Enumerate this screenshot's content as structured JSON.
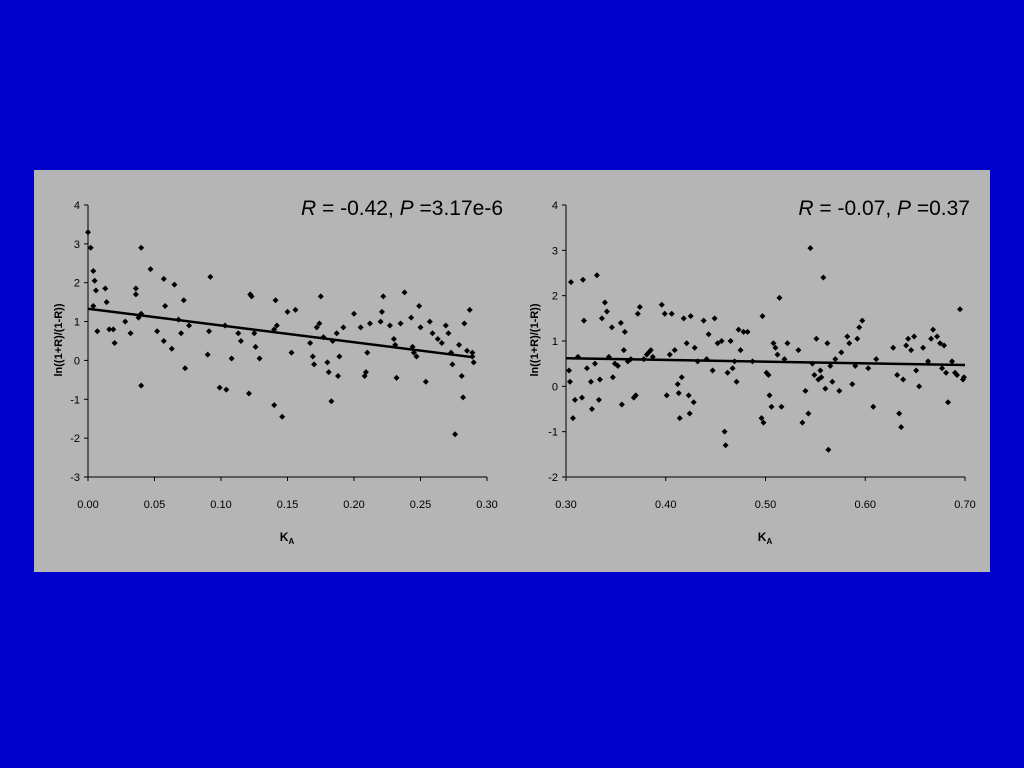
{
  "background": "#0000CC",
  "panel_color": "#B5B5B5",
  "chart_data": [
    {
      "type": "scatter",
      "title_parts": {
        "r_symbol": "R",
        "r_text": " = -0.42, ",
        "p_symbol": "P",
        "p_text": " =3.17e-6"
      },
      "xlabel": "K",
      "xlabel_sub": "A",
      "ylabel": "ln((1+R)/(1-R))",
      "xlim": [
        0.0,
        0.3
      ],
      "ylim": [
        -3,
        4
      ],
      "xticks": [
        "0.00",
        "0.05",
        "0.10",
        "0.15",
        "0.20",
        "0.25",
        "0.30"
      ],
      "yticks": [
        "-3",
        "-2",
        "-1",
        "0",
        "1",
        "2",
        "3",
        "4"
      ],
      "fit_line": {
        "x": [
          0.0,
          0.29
        ],
        "y": [
          1.33,
          0.08
        ]
      },
      "points": [
        [
          0.0,
          3.3
        ],
        [
          0.002,
          2.9
        ],
        [
          0.004,
          2.3
        ],
        [
          0.005,
          2.05
        ],
        [
          0.006,
          1.8
        ],
        [
          0.004,
          1.4
        ],
        [
          0.007,
          0.75
        ],
        [
          0.013,
          1.85
        ],
        [
          0.014,
          1.5
        ],
        [
          0.016,
          0.8
        ],
        [
          0.019,
          0.8
        ],
        [
          0.02,
          0.45
        ],
        [
          0.028,
          1.0
        ],
        [
          0.032,
          0.7
        ],
        [
          0.036,
          1.85
        ],
        [
          0.036,
          1.7
        ],
        [
          0.038,
          1.1
        ],
        [
          0.04,
          1.2
        ],
        [
          0.04,
          2.9
        ],
        [
          0.04,
          -0.65
        ],
        [
          0.047,
          2.35
        ],
        [
          0.052,
          0.75
        ],
        [
          0.057,
          0.5
        ],
        [
          0.057,
          2.1
        ],
        [
          0.058,
          1.4
        ],
        [
          0.063,
          0.3
        ],
        [
          0.065,
          1.95
        ],
        [
          0.068,
          1.05
        ],
        [
          0.07,
          0.7
        ],
        [
          0.072,
          1.55
        ],
        [
          0.073,
          -0.2
        ],
        [
          0.076,
          0.9
        ],
        [
          0.09,
          0.15
        ],
        [
          0.091,
          0.75
        ],
        [
          0.092,
          2.15
        ],
        [
          0.099,
          -0.7
        ],
        [
          0.103,
          0.9
        ],
        [
          0.104,
          -0.75
        ],
        [
          0.108,
          0.05
        ],
        [
          0.113,
          0.7
        ],
        [
          0.115,
          0.5
        ],
        [
          0.121,
          -0.85
        ],
        [
          0.122,
          1.7
        ],
        [
          0.123,
          1.65
        ],
        [
          0.125,
          0.7
        ],
        [
          0.126,
          0.35
        ],
        [
          0.129,
          0.05
        ],
        [
          0.14,
          0.8
        ],
        [
          0.142,
          0.9
        ],
        [
          0.141,
          1.55
        ],
        [
          0.14,
          -1.15
        ],
        [
          0.146,
          -1.45
        ],
        [
          0.15,
          1.25
        ],
        [
          0.153,
          0.2
        ],
        [
          0.156,
          1.3
        ],
        [
          0.167,
          0.45
        ],
        [
          0.169,
          0.1
        ],
        [
          0.17,
          -0.1
        ],
        [
          0.172,
          0.85
        ],
        [
          0.174,
          0.95
        ],
        [
          0.175,
          1.65
        ],
        [
          0.177,
          0.6
        ],
        [
          0.18,
          -0.05
        ],
        [
          0.181,
          -0.3
        ],
        [
          0.183,
          -1.05
        ],
        [
          0.184,
          0.5
        ],
        [
          0.187,
          0.7
        ],
        [
          0.188,
          -0.4
        ],
        [
          0.189,
          0.1
        ],
        [
          0.192,
          0.85
        ],
        [
          0.2,
          1.2
        ],
        [
          0.205,
          0.85
        ],
        [
          0.208,
          -0.4
        ],
        [
          0.209,
          -0.3
        ],
        [
          0.21,
          0.2
        ],
        [
          0.212,
          0.95
        ],
        [
          0.22,
          1.0
        ],
        [
          0.221,
          1.25
        ],
        [
          0.222,
          1.65
        ],
        [
          0.227,
          0.9
        ],
        [
          0.23,
          0.55
        ],
        [
          0.231,
          0.4
        ],
        [
          0.232,
          -0.45
        ],
        [
          0.235,
          0.95
        ],
        [
          0.238,
          1.75
        ],
        [
          0.243,
          1.1
        ],
        [
          0.244,
          0.35
        ],
        [
          0.245,
          0.2
        ],
        [
          0.247,
          0.1
        ],
        [
          0.249,
          1.4
        ],
        [
          0.25,
          0.85
        ],
        [
          0.254,
          -0.55
        ],
        [
          0.257,
          1.0
        ],
        [
          0.259,
          0.7
        ],
        [
          0.263,
          0.55
        ],
        [
          0.266,
          0.45
        ],
        [
          0.269,
          0.9
        ],
        [
          0.271,
          0.7
        ],
        [
          0.273,
          0.2
        ],
        [
          0.274,
          -0.1
        ],
        [
          0.276,
          -1.9
        ],
        [
          0.279,
          0.4
        ],
        [
          0.281,
          -0.4
        ],
        [
          0.282,
          -0.95
        ],
        [
          0.283,
          0.95
        ],
        [
          0.285,
          0.25
        ],
        [
          0.287,
          1.3
        ],
        [
          0.289,
          0.1
        ],
        [
          0.29,
          -0.05
        ],
        [
          0.289,
          0.2
        ]
      ]
    },
    {
      "type": "scatter",
      "title_parts": {
        "r_symbol": "R",
        "r_text": " = -0.07, ",
        "p_symbol": "P",
        "p_text": " =0.37"
      },
      "xlabel": "K",
      "xlabel_sub": "A",
      "ylabel": "ln((1+R)/(1-R))",
      "xlim": [
        0.3,
        0.7
      ],
      "ylim": [
        -2,
        4
      ],
      "xticks": [
        "0.30",
        "0.40",
        "0.50",
        "0.60",
        "0.70"
      ],
      "yticks": [
        "-2",
        "-1",
        "0",
        "1",
        "2",
        "3",
        "4"
      ],
      "fit_line": {
        "x": [
          0.3,
          0.7
        ],
        "y": [
          0.62,
          0.47
        ]
      },
      "points": [
        [
          0.303,
          0.35
        ],
        [
          0.304,
          0.1
        ],
        [
          0.305,
          2.3
        ],
        [
          0.307,
          -0.7
        ],
        [
          0.309,
          -0.3
        ],
        [
          0.312,
          0.65
        ],
        [
          0.316,
          -0.25
        ],
        [
          0.317,
          2.35
        ],
        [
          0.318,
          1.45
        ],
        [
          0.321,
          0.4
        ],
        [
          0.325,
          0.1
        ],
        [
          0.326,
          -0.5
        ],
        [
          0.329,
          0.5
        ],
        [
          0.331,
          2.45
        ],
        [
          0.333,
          -0.3
        ],
        [
          0.334,
          0.15
        ],
        [
          0.336,
          1.5
        ],
        [
          0.339,
          1.85
        ],
        [
          0.341,
          1.65
        ],
        [
          0.343,
          0.65
        ],
        [
          0.346,
          1.3
        ],
        [
          0.347,
          0.2
        ],
        [
          0.349,
          0.5
        ],
        [
          0.352,
          0.45
        ],
        [
          0.355,
          1.4
        ],
        [
          0.356,
          -0.4
        ],
        [
          0.358,
          0.8
        ],
        [
          0.359,
          1.2
        ],
        [
          0.362,
          0.55
        ],
        [
          0.365,
          0.6
        ],
        [
          0.368,
          -0.25
        ],
        [
          0.37,
          -0.2
        ],
        [
          0.372,
          1.6
        ],
        [
          0.374,
          1.75
        ],
        [
          0.378,
          0.6
        ],
        [
          0.381,
          0.7
        ],
        [
          0.383,
          0.75
        ],
        [
          0.385,
          0.8
        ],
        [
          0.387,
          0.65
        ],
        [
          0.396,
          1.8
        ],
        [
          0.399,
          1.6
        ],
        [
          0.401,
          -0.2
        ],
        [
          0.404,
          0.7
        ],
        [
          0.406,
          1.6
        ],
        [
          0.409,
          0.8
        ],
        [
          0.412,
          0.05
        ],
        [
          0.413,
          -0.15
        ],
        [
          0.414,
          -0.7
        ],
        [
          0.416,
          0.2
        ],
        [
          0.418,
          1.5
        ],
        [
          0.421,
          0.95
        ],
        [
          0.423,
          -0.2
        ],
        [
          0.424,
          -0.6
        ],
        [
          0.425,
          1.55
        ],
        [
          0.428,
          -0.35
        ],
        [
          0.429,
          0.85
        ],
        [
          0.432,
          0.55
        ],
        [
          0.438,
          1.45
        ],
        [
          0.441,
          0.6
        ],
        [
          0.443,
          1.15
        ],
        [
          0.447,
          0.35
        ],
        [
          0.449,
          1.5
        ],
        [
          0.452,
          0.95
        ],
        [
          0.456,
          1.0
        ],
        [
          0.459,
          -1.0
        ],
        [
          0.46,
          -1.3
        ],
        [
          0.462,
          0.3
        ],
        [
          0.465,
          1.0
        ],
        [
          0.467,
          0.4
        ],
        [
          0.469,
          0.55
        ],
        [
          0.471,
          0.1
        ],
        [
          0.473,
          1.25
        ],
        [
          0.475,
          0.8
        ],
        [
          0.478,
          1.2
        ],
        [
          0.482,
          1.2
        ],
        [
          0.487,
          0.55
        ],
        [
          0.496,
          -0.7
        ],
        [
          0.497,
          1.55
        ],
        [
          0.498,
          -0.8
        ],
        [
          0.501,
          0.3
        ],
        [
          0.503,
          0.25
        ],
        [
          0.504,
          -0.2
        ],
        [
          0.506,
          -0.45
        ],
        [
          0.508,
          0.95
        ],
        [
          0.51,
          0.85
        ],
        [
          0.512,
          0.7
        ],
        [
          0.514,
          1.95
        ],
        [
          0.516,
          -0.45
        ],
        [
          0.519,
          0.6
        ],
        [
          0.522,
          0.95
        ],
        [
          0.533,
          0.8
        ],
        [
          0.537,
          -0.8
        ],
        [
          0.54,
          -0.1
        ],
        [
          0.543,
          -0.6
        ],
        [
          0.545,
          3.05
        ],
        [
          0.547,
          0.5
        ],
        [
          0.549,
          0.25
        ],
        [
          0.551,
          1.05
        ],
        [
          0.553,
          0.15
        ],
        [
          0.555,
          0.35
        ],
        [
          0.556,
          0.2
        ],
        [
          0.558,
          2.4
        ],
        [
          0.56,
          -0.05
        ],
        [
          0.562,
          0.95
        ],
        [
          0.563,
          -1.4
        ],
        [
          0.565,
          0.45
        ],
        [
          0.567,
          0.1
        ],
        [
          0.57,
          0.6
        ],
        [
          0.574,
          -0.1
        ],
        [
          0.576,
          0.75
        ],
        [
          0.582,
          1.1
        ],
        [
          0.584,
          0.95
        ],
        [
          0.587,
          0.05
        ],
        [
          0.59,
          0.45
        ],
        [
          0.592,
          1.05
        ],
        [
          0.594,
          1.3
        ],
        [
          0.597,
          1.45
        ],
        [
          0.603,
          0.4
        ],
        [
          0.608,
          -0.45
        ],
        [
          0.611,
          0.6
        ],
        [
          0.628,
          0.85
        ],
        [
          0.632,
          0.25
        ],
        [
          0.634,
          -0.6
        ],
        [
          0.636,
          -0.9
        ],
        [
          0.638,
          0.15
        ],
        [
          0.641,
          0.9
        ],
        [
          0.643,
          1.05
        ],
        [
          0.646,
          0.8
        ],
        [
          0.649,
          1.1
        ],
        [
          0.651,
          0.35
        ],
        [
          0.654,
          0.0
        ],
        [
          0.658,
          0.85
        ],
        [
          0.663,
          0.55
        ],
        [
          0.666,
          1.05
        ],
        [
          0.668,
          1.25
        ],
        [
          0.672,
          1.1
        ],
        [
          0.675,
          0.95
        ],
        [
          0.677,
          0.4
        ],
        [
          0.679,
          0.9
        ],
        [
          0.681,
          0.3
        ],
        [
          0.683,
          -0.35
        ],
        [
          0.687,
          0.55
        ],
        [
          0.69,
          0.3
        ],
        [
          0.692,
          0.25
        ],
        [
          0.695,
          1.7
        ],
        [
          0.698,
          0.15
        ],
        [
          0.699,
          0.2
        ]
      ]
    }
  ]
}
